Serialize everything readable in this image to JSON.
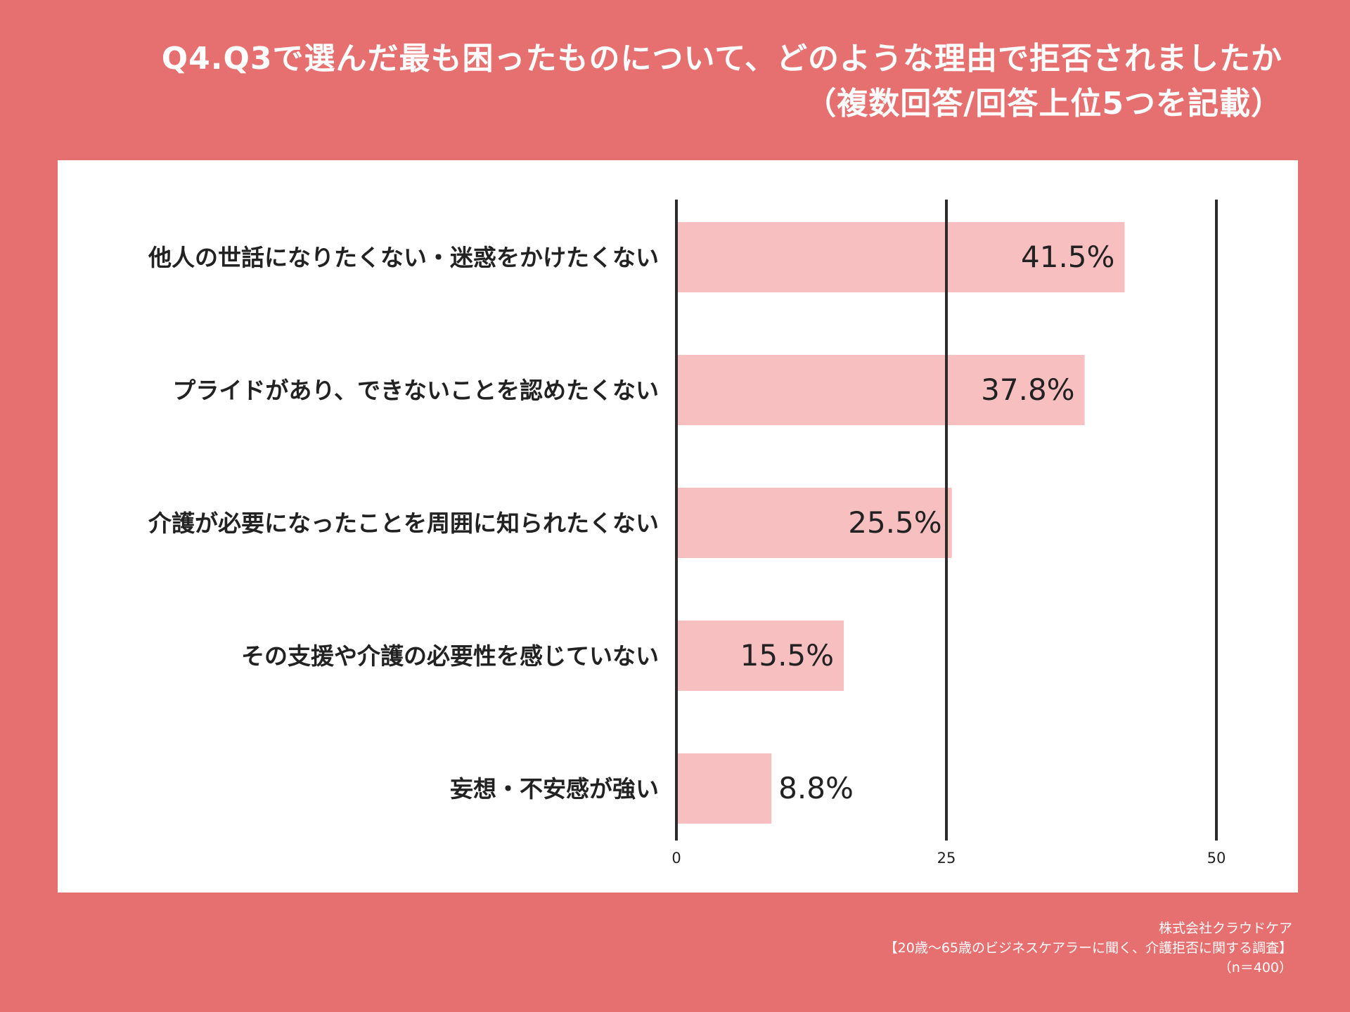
{
  "title_line1": "Q4.Q3で選んだ最も困ったものについて、どのような理由で拒否されましたか",
  "title_line2": "（複数回答/回答上位5つを記載）",
  "chart_data": {
    "type": "bar",
    "orientation": "horizontal",
    "categories": [
      "他人の世話になりたくない・迷惑をかけたくない",
      "プライドがあり、できないことを認めたくない",
      "介護が必要になったことを周囲に知られたくない",
      "その支援や介護の必要性を感じていない",
      "妄想・不安感が強い"
    ],
    "values": [
      41.5,
      37.8,
      25.5,
      15.5,
      8.8
    ],
    "value_labels": [
      "41.5%",
      "37.8%",
      "25.5%",
      "15.5%",
      "8.8%"
    ],
    "xlim": [
      0,
      50
    ],
    "xticks": [
      0,
      25,
      50
    ],
    "xtick_labels": [
      "0",
      "25",
      "50"
    ],
    "grid": true,
    "bar_color": "#f7bfc0"
  },
  "footer": {
    "company": "株式会社クラウドケア",
    "survey": "【20歳〜65歳のビジネスケアラーに聞く、介護拒否に関する調査】",
    "sample": "（n＝400）"
  },
  "colors": {
    "background": "#e67070",
    "panel": "#ffffff",
    "bar": "#f7bfc0",
    "text": "#222222",
    "gridline": "#2b2b2b"
  }
}
